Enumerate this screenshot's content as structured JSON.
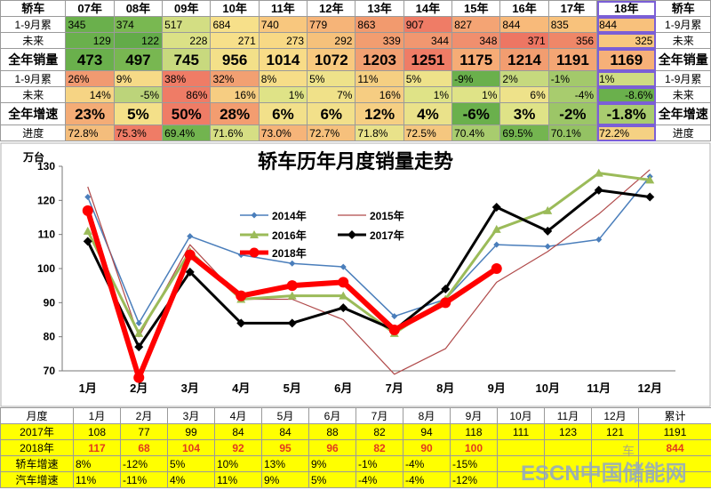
{
  "top": {
    "header": [
      "轿车",
      "07年",
      "08年",
      "09年",
      "10年",
      "11年",
      "12年",
      "13年",
      "14年",
      "15年",
      "16年",
      "17年",
      "18年",
      "轿车"
    ],
    "rows": [
      {
        "label": "1-9月累",
        "right_label": "1-9月累",
        "values": [
          "345",
          "374",
          "517",
          "684",
          "740",
          "779",
          "863",
          "907",
          "827",
          "844",
          "835",
          "844"
        ],
        "colors": [
          "#6ab04c",
          "#79b851",
          "#d3de83",
          "#f7e08a",
          "#f8c77e",
          "#f6b478",
          "#f29a6e",
          "#ef7c66",
          "#f4a474",
          "#f8ba7a",
          "#f8c27c",
          "#f8c17c"
        ]
      },
      {
        "label": "未来",
        "right_label": "未来",
        "values": [
          "129",
          "122",
          "228",
          "271",
          "273",
          "292",
          "339",
          "344",
          "348",
          "371",
          "356",
          "325"
        ],
        "colors": [
          "#6ab04c",
          "#63ab49",
          "#dbe186",
          "#f7e08a",
          "#f8d985",
          "#f6c17b",
          "#f29d70",
          "#f19770",
          "#f08f6e",
          "#ed7663",
          "#ef8768",
          "#f8c87f"
        ]
      },
      {
        "label": "全年销量",
        "right_label": "全年销量",
        "big": true,
        "values": [
          "473",
          "497",
          "745",
          "956",
          "1014",
          "1072",
          "1203",
          "1251",
          "1175",
          "1214",
          "1191",
          "1169"
        ],
        "colors": [
          "#6ab04c",
          "#78b751",
          "#c8d97e",
          "#f3e089",
          "#f8dc87",
          "#f8c97f",
          "#f2a072",
          "#ef7c66",
          "#f6ac76",
          "#f29d70",
          "#f4a674",
          "#f6b078"
        ]
      },
      {
        "label": "1-9月累",
        "right_label": "1-9月累",
        "values": [
          "26%",
          "9%",
          "38%",
          "32%",
          "8%",
          "5%",
          "11%",
          "5%",
          "-9%",
          "2%",
          "-1%",
          "1%"
        ],
        "colors": [
          "#f19a71",
          "#f6da87",
          "#ef7c66",
          "#f2a072",
          "#f6dd88",
          "#eee28a",
          "#f5cf82",
          "#eee28a",
          "#6ab04c",
          "#c6d97e",
          "#a3c96b",
          "#cfdc82"
        ],
        "align": "left"
      },
      {
        "label": "未来",
        "right_label": "未来",
        "values": [
          "14%",
          "-5%",
          "86%",
          "16%",
          "1%",
          "7%",
          "16%",
          "1%",
          "1%",
          "6%",
          "-4%",
          "-8.6%"
        ],
        "colors": [
          "#f6d484",
          "#bcd47a",
          "#ef7c66",
          "#f6cd82",
          "#dfe387",
          "#f0e189",
          "#f6cd82",
          "#dfe387",
          "#dfe387",
          "#eee28a",
          "#a8cc6e",
          "#6ab04c"
        ],
        "align": "right"
      },
      {
        "label": "全年增速",
        "right_label": "全年增速",
        "big": true,
        "values": [
          "23%",
          "5%",
          "50%",
          "28%",
          "6%",
          "6%",
          "12%",
          "4%",
          "-6%",
          "3%",
          "-2%",
          "-1.8%"
        ],
        "colors": [
          "#f4ac76",
          "#f4e089",
          "#ef7c66",
          "#f39d70",
          "#f2e08a",
          "#f2e08a",
          "#f6cf83",
          "#eae28a",
          "#6ab04c",
          "#dfe387",
          "#9cc667",
          "#a9cc6f"
        ]
      },
      {
        "label": "进度",
        "right_label": "进度",
        "values": [
          "72.8%",
          "75.3%",
          "69.4%",
          "71.6%",
          "73.0%",
          "72.7%",
          "71.8%",
          "72.5%",
          "70.4%",
          "69.5%",
          "70.1%",
          "72.2%"
        ],
        "colors": [
          "#f4bd7c",
          "#ef7c66",
          "#72b44f",
          "#d6de84",
          "#f6b479",
          "#f6c07c",
          "#e9e28a",
          "#f5c77f",
          "#a8cc6e",
          "#74b550",
          "#94c263",
          "#f5d183"
        ]
      }
    ]
  },
  "chart_data": {
    "type": "line",
    "title": "轿车历年月度销量走势",
    "ylabel": "万台",
    "categories": [
      "1月",
      "2月",
      "3月",
      "4月",
      "5月",
      "6月",
      "7月",
      "8月",
      "9月",
      "10月",
      "11月",
      "12月"
    ],
    "ylim": [
      70,
      130
    ],
    "yticks": [
      70,
      80,
      90,
      100,
      110,
      120,
      130
    ],
    "series": [
      {
        "name": "2014年",
        "color": "#4a7ebb",
        "width": 1.5,
        "marker": "diamond",
        "values": [
          121,
          84,
          109.5,
          104,
          101.5,
          100.5,
          86,
          91,
          107,
          106.5,
          108.5,
          127
        ]
      },
      {
        "name": "2015年",
        "color": "#b04a4a",
        "width": 1.2,
        "marker": "none",
        "values": [
          124,
          80,
          107,
          91,
          91,
          85,
          69,
          76.5,
          96,
          105,
          116,
          129
        ]
      },
      {
        "name": "2016年",
        "color": "#9bbb59",
        "width": 3,
        "marker": "triangle",
        "values": [
          111,
          81,
          105,
          91,
          92,
          92,
          81,
          91,
          111.5,
          117,
          128,
          126
        ]
      },
      {
        "name": "2017年",
        "color": "#000000",
        "width": 3,
        "marker": "diamond",
        "values": [
          108,
          77,
          99,
          84,
          84,
          88.5,
          82,
          94,
          118,
          111,
          123,
          121
        ]
      },
      {
        "name": "2018年",
        "color": "#ff0000",
        "width": 6,
        "marker": "circle",
        "values": [
          117,
          68,
          104,
          92,
          95,
          96,
          82,
          90,
          100,
          null,
          null,
          null
        ]
      }
    ]
  },
  "bottom": {
    "header": [
      "月度",
      "1月",
      "2月",
      "3月",
      "4月",
      "5月",
      "6月",
      "7月",
      "8月",
      "9月",
      "10月",
      "11月",
      "12月",
      "累计"
    ],
    "rows": [
      {
        "label": "2017年",
        "values": [
          "108",
          "77",
          "99",
          "84",
          "84",
          "88",
          "82",
          "94",
          "118",
          "111",
          "123",
          "121",
          "1191"
        ],
        "color": "#000000",
        "bold": false
      },
      {
        "label": "2018年",
        "values": [
          "117",
          "68",
          "104",
          "92",
          "95",
          "96",
          "82",
          "90",
          "100",
          "",
          "",
          "",
          "844"
        ],
        "color": "#e23a1f",
        "bold": true
      },
      {
        "label": "轿车增速",
        "values": [
          "8%",
          "-12%",
          "5%",
          "10%",
          "13%",
          "9%",
          "-1%",
          "-4%",
          "-15%",
          "",
          "",
          "",
          ""
        ],
        "color": "#000000",
        "bold": false
      },
      {
        "label": "汽车增速",
        "values": [
          "11%",
          "-11%",
          "4%",
          "11%",
          "9%",
          "5%",
          "-4%",
          "-4%",
          "-12%",
          "",
          "",
          "",
          ""
        ],
        "color": "#000000",
        "bold": false
      }
    ]
  },
  "watermark": "ESCN中国储能网",
  "watermark_small": "车",
  "bottom_corner": "1.1"
}
